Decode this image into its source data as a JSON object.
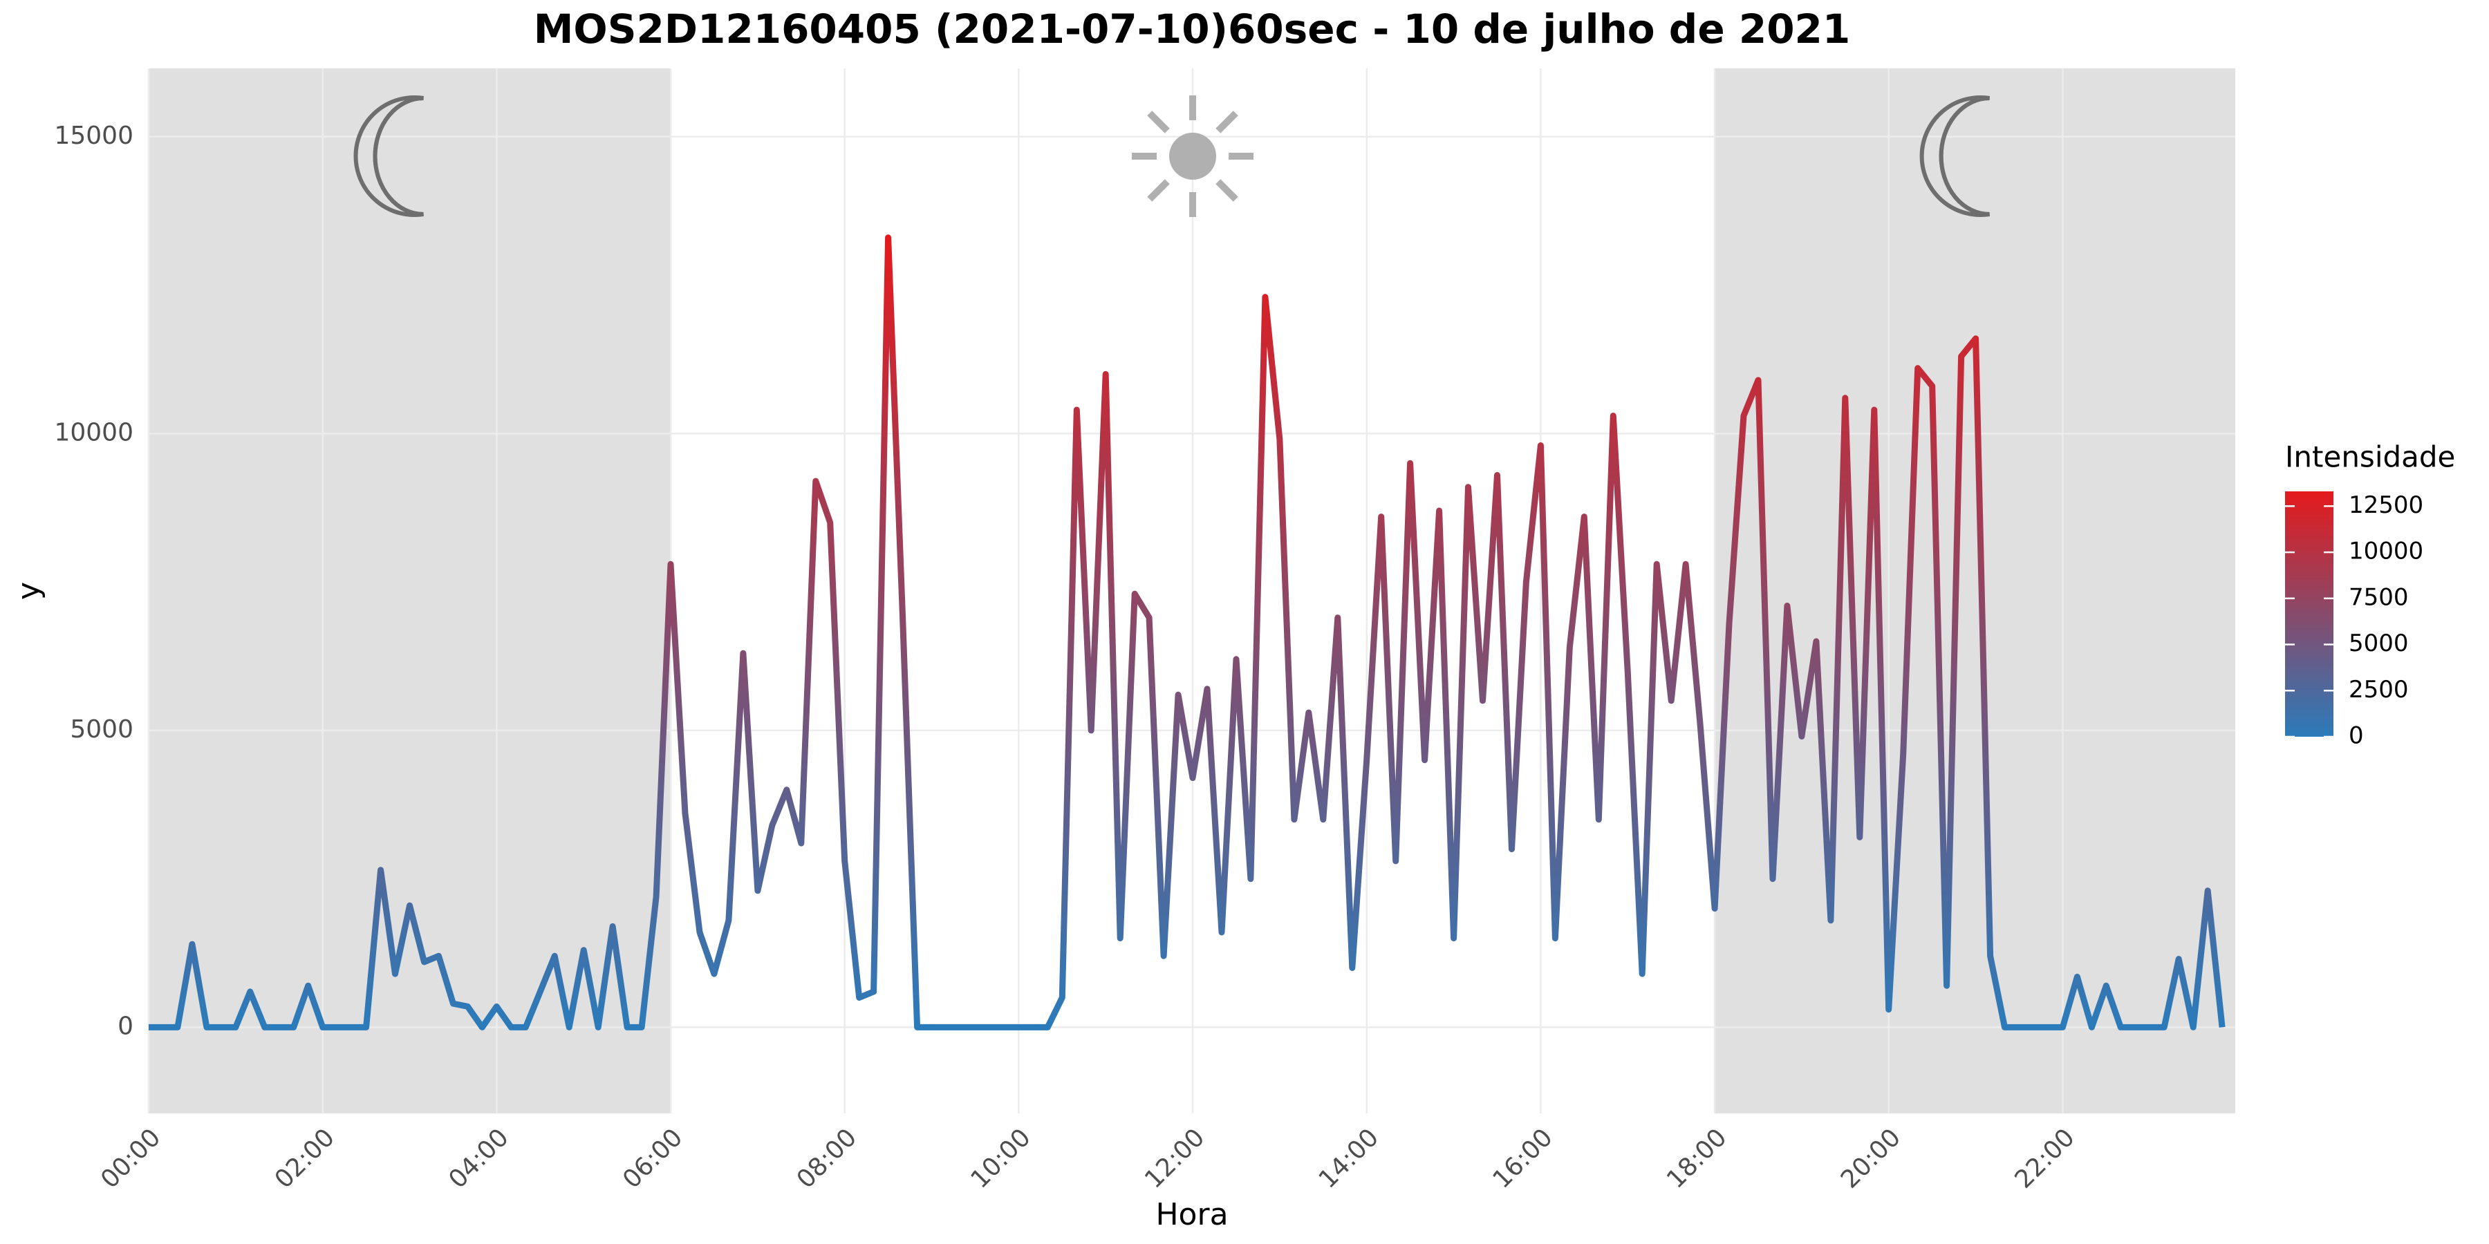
{
  "chart_data": {
    "type": "line",
    "title": "MOS2D12160405 (2021-07-10)60sec - 10 de julho de 2021",
    "xlabel": "Hora",
    "ylabel": "y",
    "xlim": [
      "00:00",
      "23:59"
    ],
    "xticks": [
      "00:00",
      "02:00",
      "04:00",
      "06:00",
      "08:00",
      "10:00",
      "12:00",
      "14:00",
      "16:00",
      "18:00",
      "20:00",
      "22:00"
    ],
    "ylim": [
      -1450,
      16150
    ],
    "yticks": [
      0,
      5000,
      10000,
      15000
    ],
    "grid": true,
    "shaded_regions": [
      {
        "start": "00:00",
        "end": "06:00"
      },
      {
        "start": "18:00",
        "end": "23:59"
      }
    ],
    "colorscale": {
      "title": "Intensidade",
      "low": "#2b7bba",
      "high": "#e41a1c",
      "limits": [
        0,
        13300
      ],
      "ticks": [
        0,
        2500,
        5000,
        7500,
        10000,
        12500
      ]
    },
    "x": [
      "00:00",
      "00:10",
      "00:20",
      "00:30",
      "00:40",
      "00:50",
      "01:00",
      "01:10",
      "01:20",
      "01:30",
      "01:40",
      "01:50",
      "02:00",
      "02:10",
      "02:20",
      "02:30",
      "02:40",
      "02:50",
      "03:00",
      "03:10",
      "03:20",
      "03:30",
      "03:40",
      "03:50",
      "04:00",
      "04:10",
      "04:20",
      "04:30",
      "04:40",
      "04:50",
      "05:00",
      "05:10",
      "05:20",
      "05:30",
      "05:40",
      "05:50",
      "06:00",
      "06:10",
      "06:20",
      "06:30",
      "06:40",
      "06:50",
      "07:00",
      "07:10",
      "07:20",
      "07:30",
      "07:40",
      "07:50",
      "08:00",
      "08:10",
      "08:20",
      "08:30",
      "08:40",
      "08:50",
      "09:00",
      "09:10",
      "09:20",
      "09:30",
      "09:40",
      "09:50",
      "10:00",
      "10:10",
      "10:20",
      "10:30",
      "10:40",
      "10:50",
      "11:00",
      "11:10",
      "11:20",
      "11:30",
      "11:40",
      "11:50",
      "12:00",
      "12:10",
      "12:20",
      "12:30",
      "12:40",
      "12:50",
      "13:00",
      "13:10",
      "13:20",
      "13:30",
      "13:40",
      "13:50",
      "14:00",
      "14:10",
      "14:20",
      "14:30",
      "14:40",
      "14:50",
      "15:00",
      "15:10",
      "15:20",
      "15:30",
      "15:40",
      "15:50",
      "16:00",
      "16:10",
      "16:20",
      "16:30",
      "16:40",
      "16:50",
      "17:00",
      "17:10",
      "17:20",
      "17:30",
      "17:40",
      "17:50",
      "18:00",
      "18:10",
      "18:20",
      "18:30",
      "18:40",
      "18:50",
      "19:00",
      "19:10",
      "19:20",
      "19:30",
      "19:40",
      "19:50",
      "20:00",
      "20:10",
      "20:20",
      "20:30",
      "20:40",
      "20:50",
      "21:00",
      "21:10",
      "21:20",
      "21:30",
      "21:40",
      "21:50",
      "22:00",
      "22:10",
      "22:20",
      "22:30",
      "22:40",
      "22:50",
      "23:00",
      "23:10",
      "23:20",
      "23:30",
      "23:40",
      "23:50"
    ],
    "values": [
      0,
      0,
      0,
      1400,
      0,
      0,
      0,
      600,
      0,
      0,
      0,
      700,
      0,
      0,
      0,
      0,
      2650,
      900,
      2050,
      1100,
      1200,
      400,
      350,
      0,
      350,
      0,
      0,
      600,
      1200,
      0,
      1300,
      0,
      1700,
      0,
      0,
      2200,
      7800,
      3600,
      1600,
      900,
      1800,
      6300,
      2300,
      3400,
      4000,
      3100,
      9200,
      8500,
      2800,
      500,
      600,
      13300,
      6900,
      0,
      0,
      0,
      0,
      0,
      0,
      0,
      0,
      0,
      0,
      500,
      10400,
      5000,
      11000,
      1500,
      7300,
      6900,
      1200,
      5600,
      4200,
      5700,
      1600,
      6200,
      2500,
      12300,
      9900,
      3500,
      5300,
      3500,
      6900,
      1000,
      4500,
      8600,
      2800,
      9500,
      4500,
      8700,
      1500,
      9100,
      5500,
      9300,
      3000,
      7500,
      9800,
      1500,
      6400,
      8600,
      3500,
      10300,
      6000,
      900,
      7800,
      5500,
      7800,
      5100,
      2000,
      6800,
      10300,
      10900,
      2500,
      7100,
      4900,
      6500,
      1800,
      10600,
      3200,
      10400,
      300,
      4600,
      11100,
      10800,
      700,
      11300,
      11600,
      1200,
      0,
      0,
      0,
      0,
      0,
      850,
      0,
      700,
      0,
      0,
      0,
      0,
      1150,
      0,
      2300,
      0
    ]
  }
}
